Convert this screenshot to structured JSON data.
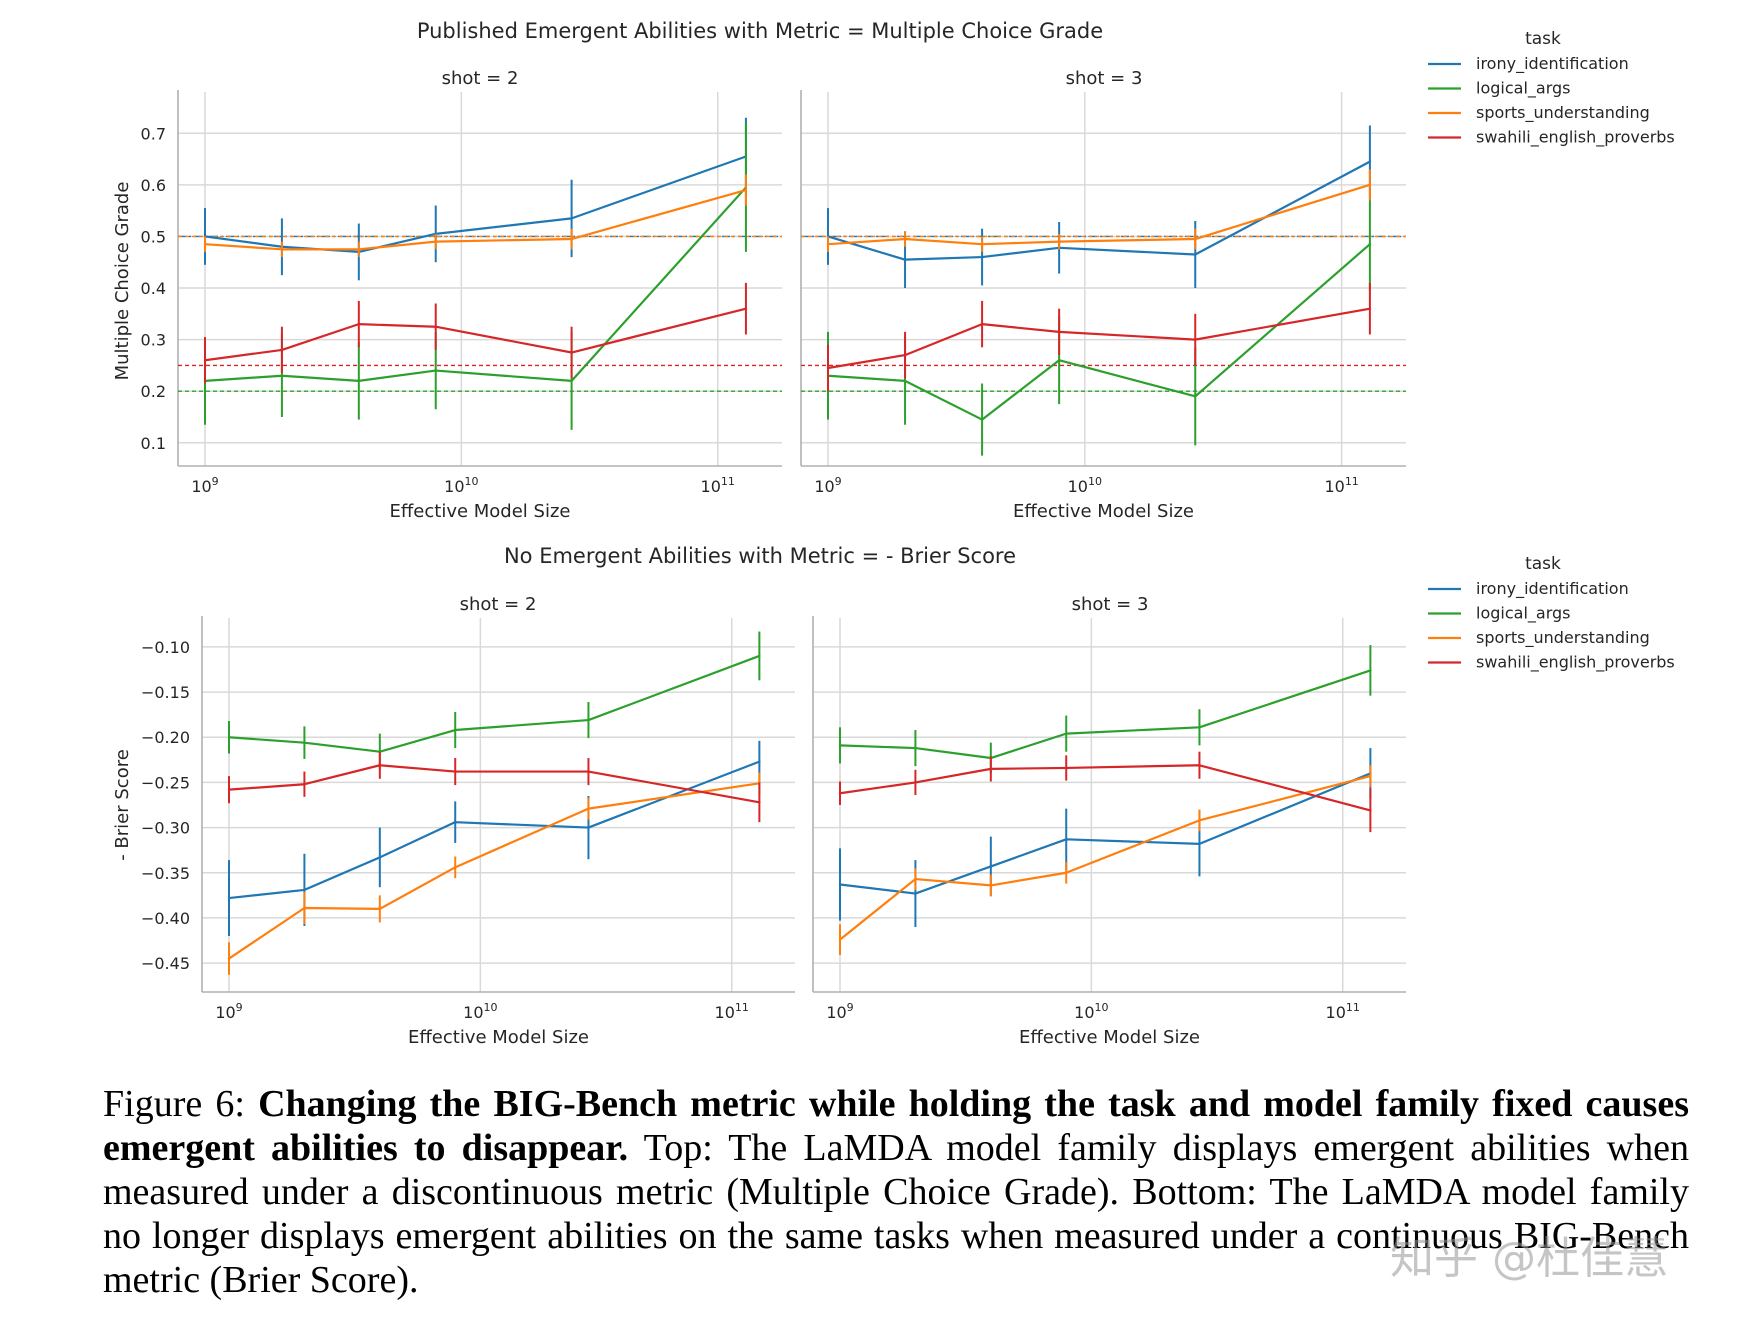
{
  "figure": {
    "colors": {
      "irony_identification": "#1f77b4",
      "logical_args": "#2ca02c",
      "sports_understanding": "#ff7f0e",
      "swahili_english_proverbs": "#d62728",
      "grid": "#d9d9d9",
      "axis": "#b0b0b0",
      "text": "#262626"
    }
  },
  "chart_data": [
    {
      "type": "line",
      "title": "Published Emergent Abilities with Metric = Multiple Choice Grade",
      "ylabel": "Multiple Choice Grade",
      "xlabel": "Effective Model Size",
      "xscale": "log",
      "xlim_log10": [
        8.95,
        11.2
      ],
      "ylim": [
        0.055,
        0.78
      ],
      "yticks": [
        0.1,
        0.2,
        0.3,
        0.4,
        0.5,
        0.6,
        0.7
      ],
      "ytick_labels": [
        "0.1",
        "0.2",
        "0.3",
        "0.4",
        "0.5",
        "0.6",
        "0.7"
      ],
      "xticks_log10": [
        9,
        10,
        11
      ],
      "xtick_labels": [
        "9",
        "10",
        "11"
      ],
      "xtick_base": "10",
      "legend_title": "task",
      "legend_entries": [
        "irony_identification",
        "logical_args",
        "sports_understanding",
        "swahili_english_proverbs"
      ],
      "baselines": [
        {
          "task": "irony_identification",
          "y": 0.5,
          "style": "dashdot"
        },
        {
          "task": "sports_understanding",
          "y": 0.5,
          "style": "dashed"
        },
        {
          "task": "swahili_english_proverbs",
          "y": 0.25,
          "style": "dashed"
        },
        {
          "task": "logical_args",
          "y": 0.2,
          "style": "dashed"
        }
      ],
      "x_log10": [
        9.0,
        9.3,
        9.6,
        9.9,
        10.43,
        11.11
      ],
      "panels": [
        {
          "subtitle": "shot = 2",
          "series": [
            {
              "name": "irony_identification",
              "values": [
                0.5,
                0.48,
                0.47,
                0.505,
                0.535,
                0.655
              ],
              "err": [
                0.055,
                0.055,
                0.055,
                0.055,
                0.075,
                0.075
              ]
            },
            {
              "name": "logical_args",
              "values": [
                0.22,
                0.23,
                0.22,
                0.24,
                0.22,
                0.595
              ],
              "err": [
                0.085,
                0.08,
                0.075,
                0.075,
                0.095,
                0.125
              ]
            },
            {
              "name": "sports_understanding",
              "values": [
                0.485,
                0.475,
                0.475,
                0.49,
                0.495,
                0.59
              ],
              "err": [
                0.015,
                0.015,
                0.015,
                0.015,
                0.02,
                0.03
              ]
            },
            {
              "name": "swahili_english_proverbs",
              "values": [
                0.26,
                0.28,
                0.33,
                0.325,
                0.275,
                0.36
              ],
              "err": [
                0.045,
                0.045,
                0.045,
                0.045,
                0.05,
                0.05
              ]
            }
          ]
        },
        {
          "subtitle": "shot = 3",
          "series": [
            {
              "name": "irony_identification",
              "values": [
                0.5,
                0.455,
                0.46,
                0.478,
                0.465,
                0.645
              ],
              "err": [
                0.055,
                0.055,
                0.055,
                0.05,
                0.065,
                0.07
              ]
            },
            {
              "name": "logical_args",
              "values": [
                0.23,
                0.22,
                0.145,
                0.26,
                0.19,
                0.485
              ],
              "err": [
                0.085,
                0.085,
                0.07,
                0.085,
                0.095,
                0.09
              ]
            },
            {
              "name": "sports_understanding",
              "values": [
                0.485,
                0.495,
                0.485,
                0.49,
                0.495,
                0.6
              ],
              "err": [
                0.015,
                0.015,
                0.015,
                0.015,
                0.02,
                0.03
              ]
            },
            {
              "name": "swahili_english_proverbs",
              "values": [
                0.245,
                0.27,
                0.33,
                0.315,
                0.3,
                0.36
              ],
              "err": [
                0.045,
                0.045,
                0.045,
                0.045,
                0.05,
                0.05
              ]
            }
          ]
        }
      ]
    },
    {
      "type": "line",
      "title": "No Emergent Abilities with Metric = - Brier Score",
      "ylabel": "- Brier Score",
      "xlabel": "Effective Model Size",
      "xscale": "log",
      "xlim_log10": [
        8.95,
        11.2
      ],
      "ylim": [
        -0.482,
        -0.068
      ],
      "yticks": [
        -0.1,
        -0.15,
        -0.2,
        -0.25,
        -0.3,
        -0.35,
        -0.4,
        -0.45
      ],
      "ytick_labels": [
        "−0.10",
        "−0.15",
        "−0.20",
        "−0.25",
        "−0.30",
        "−0.35",
        "−0.40",
        "−0.45"
      ],
      "xticks_log10": [
        9,
        10,
        11
      ],
      "xtick_labels": [
        "9",
        "10",
        "11"
      ],
      "xtick_base": "10",
      "legend_title": "task",
      "legend_entries": [
        "irony_identification",
        "logical_args",
        "sports_understanding",
        "swahili_english_proverbs"
      ],
      "baselines": [],
      "x_log10": [
        9.0,
        9.3,
        9.6,
        9.9,
        10.43,
        11.11
      ],
      "panels": [
        {
          "subtitle": "shot = 2",
          "series": [
            {
              "name": "irony_identification",
              "values": [
                -0.378,
                -0.369,
                -0.333,
                -0.294,
                -0.3,
                -0.227
              ],
              "err": [
                0.042,
                0.04,
                0.033,
                0.023,
                0.035,
                0.023
              ]
            },
            {
              "name": "logical_args",
              "values": [
                -0.2,
                -0.206,
                -0.216,
                -0.192,
                -0.181,
                -0.11
              ],
              "err": [
                0.018,
                0.018,
                0.02,
                0.02,
                0.02,
                0.027
              ]
            },
            {
              "name": "sports_understanding",
              "values": [
                -0.445,
                -0.389,
                -0.39,
                -0.344,
                -0.279,
                -0.251
              ],
              "err": [
                0.018,
                0.018,
                0.015,
                0.012,
                0.012,
                0.012
              ]
            },
            {
              "name": "swahili_english_proverbs",
              "values": [
                -0.258,
                -0.252,
                -0.231,
                -0.238,
                -0.238,
                -0.272
              ],
              "err": [
                0.015,
                0.014,
                0.015,
                0.015,
                0.015,
                0.022
              ]
            }
          ]
        },
        {
          "subtitle": "shot = 3",
          "series": [
            {
              "name": "irony_identification",
              "values": [
                -0.363,
                -0.373,
                -0.343,
                -0.313,
                -0.318,
                -0.24
              ],
              "err": [
                0.04,
                0.037,
                0.033,
                0.034,
                0.036,
                0.028
              ]
            },
            {
              "name": "logical_args",
              "values": [
                -0.209,
                -0.212,
                -0.223,
                -0.196,
                -0.189,
                -0.126
              ],
              "err": [
                0.02,
                0.02,
                0.017,
                0.02,
                0.02,
                0.028
              ]
            },
            {
              "name": "sports_understanding",
              "values": [
                -0.424,
                -0.357,
                -0.364,
                -0.35,
                -0.292,
                -0.243
              ],
              "err": [
                0.017,
                0.012,
                0.012,
                0.012,
                0.012,
                0.012
              ]
            },
            {
              "name": "swahili_english_proverbs",
              "values": [
                -0.262,
                -0.25,
                -0.235,
                -0.234,
                -0.231,
                -0.281
              ],
              "err": [
                0.013,
                0.014,
                0.014,
                0.014,
                0.015,
                0.024
              ]
            }
          ]
        }
      ]
    }
  ],
  "caption": {
    "label": "Figure 6: ",
    "bold": "Changing the BIG-Bench metric while holding the task and model family fixed causes emergent abilities to disappear.",
    "body": " Top: The LaMDA model family displays emergent abilities when measured under a discontinuous metric (Multiple Choice Grade).  Bottom: The LaMDA model family no longer displays emergent abilities on the same tasks when measured under a continuous BIG-Bench metric (Brier Score)."
  },
  "watermark": "知乎 @杜佳慧"
}
